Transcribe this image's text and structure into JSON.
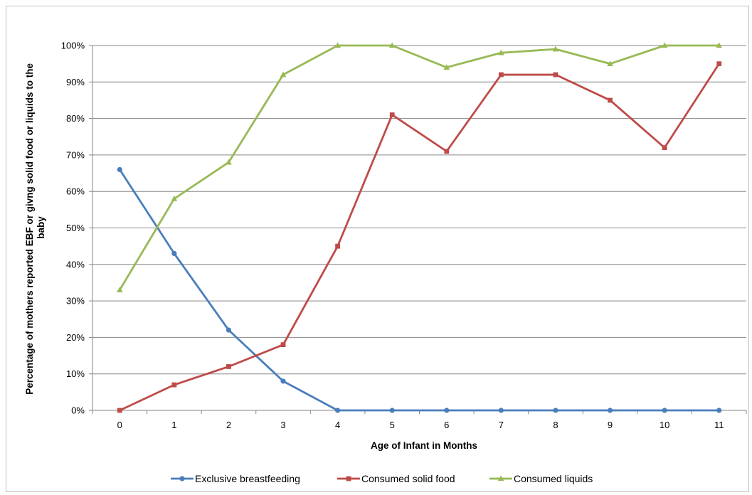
{
  "chart_data": {
    "type": "line",
    "title": "",
    "xlabel": "Age of Infant in Months",
    "ylabel": "Percentage of mothers reported EBF or givng solid food or liquids to the baby",
    "ylabel_lines": [
      "Percentage of mothers reported EBF or givng solid food or liquids to the",
      "baby"
    ],
    "x": [
      0,
      1,
      2,
      3,
      4,
      5,
      6,
      7,
      8,
      9,
      10,
      11
    ],
    "xlim": [
      0,
      11
    ],
    "ylim": [
      0,
      100
    ],
    "yticks": [
      0,
      10,
      20,
      30,
      40,
      50,
      60,
      70,
      80,
      90,
      100
    ],
    "ytick_labels": [
      "0%",
      "10%",
      "20%",
      "30%",
      "40%",
      "50%",
      "60%",
      "70%",
      "80%",
      "90%",
      "100%"
    ],
    "grid": "horizontal",
    "legend_position": "bottom",
    "series": [
      {
        "name": "Exclusive breastfeeding",
        "color": "#4a7ebb",
        "marker": "circle",
        "values": [
          66,
          43,
          22,
          8,
          0,
          0,
          0,
          0,
          0,
          0,
          0,
          0
        ]
      },
      {
        "name": "Consumed solid food",
        "color": "#be4b48",
        "marker": "square",
        "values": [
          0,
          7,
          12,
          18,
          45,
          81,
          71,
          92,
          92,
          85,
          72,
          95
        ]
      },
      {
        "name": "Consumed liquids",
        "color": "#98b954",
        "marker": "triangle",
        "values": [
          33,
          58,
          68,
          92,
          100,
          100,
          94,
          98,
          99,
          95,
          100,
          100
        ]
      }
    ]
  }
}
